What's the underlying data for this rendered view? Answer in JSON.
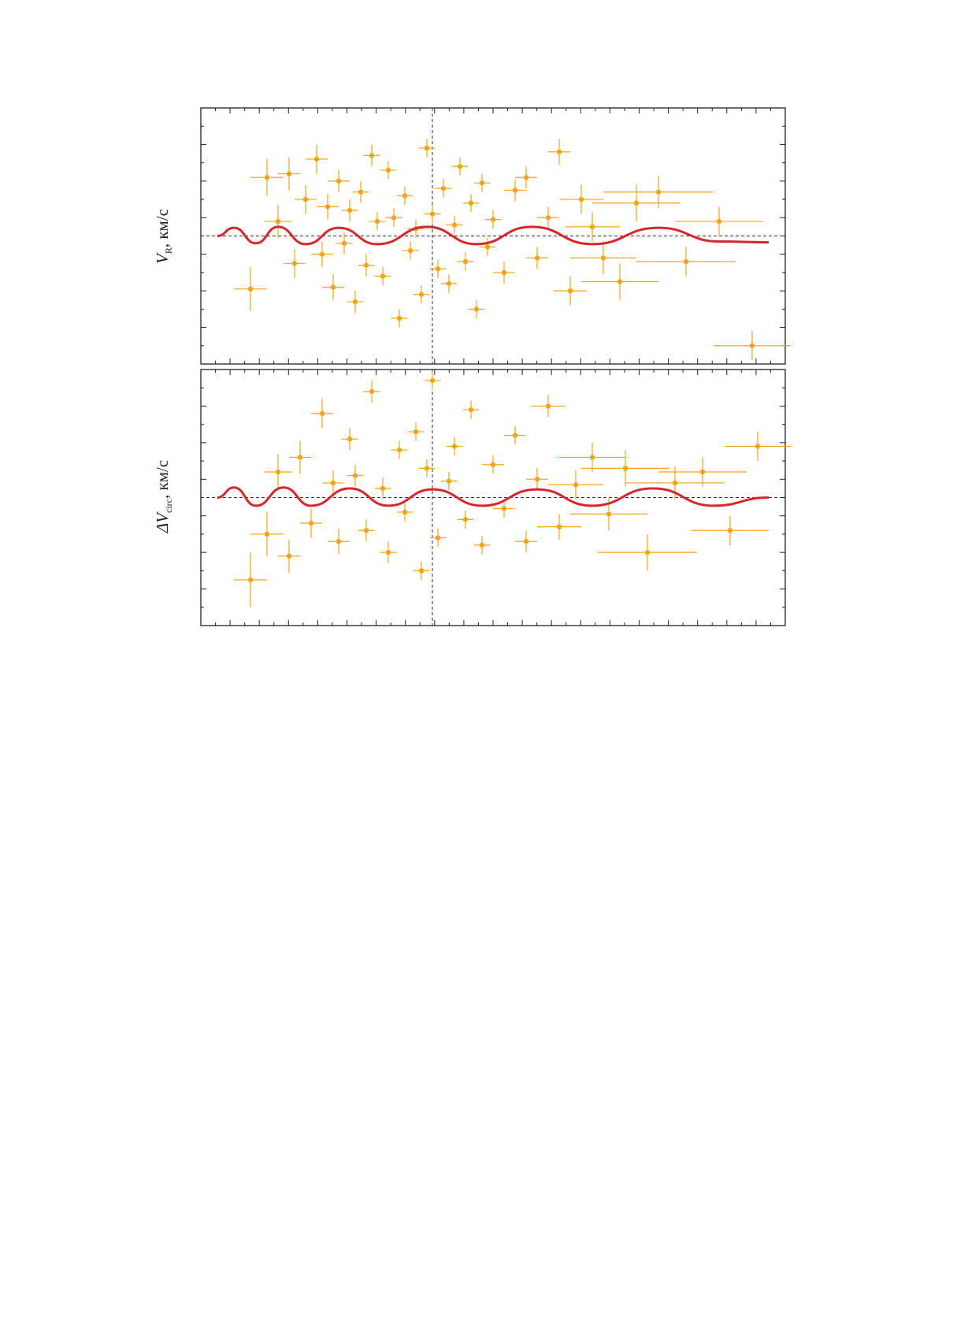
{
  "figure": {
    "colors": {
      "points": "#f5a414",
      "curve": "#d9262c",
      "refline": "#333333",
      "frame": "#222222"
    }
  },
  "chart_data": [
    {
      "type": "scatter",
      "ylabel": {
        "symbol": "V",
        "subscript": "R",
        "unit": ", км/с"
      },
      "curve": {
        "description_source": "red sinusoid-like fitted curve",
        "x": [
          0.0,
          0.03,
          0.07,
          0.11,
          0.16,
          0.22,
          0.29,
          0.38,
          0.47,
          0.57,
          0.68,
          0.8,
          0.91,
          1.0
        ],
        "y": [
          0.0,
          0.45,
          -0.4,
          0.5,
          -0.45,
          0.45,
          -0.45,
          0.5,
          -0.45,
          0.5,
          -0.45,
          0.45,
          -0.3,
          -0.35
        ]
      },
      "points": {
        "description_source": "orange points with horizontal and vertical error bars",
        "x": [
          0.06,
          0.09,
          0.11,
          0.13,
          0.14,
          0.16,
          0.18,
          0.19,
          0.2,
          0.21,
          0.22,
          0.23,
          0.24,
          0.25,
          0.26,
          0.27,
          0.28,
          0.29,
          0.3,
          0.31,
          0.32,
          0.33,
          0.34,
          0.35,
          0.36,
          0.37,
          0.38,
          0.39,
          0.4,
          0.41,
          0.42,
          0.43,
          0.44,
          0.45,
          0.46,
          0.47,
          0.48,
          0.49,
          0.5,
          0.52,
          0.54,
          0.56,
          0.58,
          0.6,
          0.62,
          0.64,
          0.66,
          0.68,
          0.7,
          0.73,
          0.76,
          0.8,
          0.85,
          0.91,
          0.97
        ],
        "y": [
          -2.9,
          3.2,
          0.8,
          3.4,
          -1.5,
          2.0,
          4.2,
          -1.0,
          1.6,
          -2.8,
          3.0,
          -0.4,
          1.4,
          -3.6,
          2.4,
          -1.6,
          4.4,
          0.8,
          -2.2,
          3.6,
          1.0,
          -4.5,
          2.2,
          -0.8,
          0.4,
          -3.2,
          4.8,
          1.2,
          -1.8,
          2.6,
          -2.6,
          0.6,
          3.8,
          -1.4,
          1.8,
          -4.0,
          2.9,
          -0.6,
          0.9,
          -2.0,
          2.5,
          3.2,
          -1.2,
          1.0,
          4.6,
          -3.0,
          2.0,
          0.5,
          -1.2,
          -2.5,
          1.8,
          2.4,
          -1.4,
          0.8,
          -6.0
        ],
        "xerr": [
          0.03,
          0.03,
          0.025,
          0.02,
          0.02,
          0.02,
          0.02,
          0.02,
          0.02,
          0.02,
          0.02,
          0.015,
          0.015,
          0.015,
          0.015,
          0.015,
          0.015,
          0.015,
          0.015,
          0.015,
          0.015,
          0.015,
          0.015,
          0.015,
          0.015,
          0.015,
          0.015,
          0.015,
          0.015,
          0.015,
          0.015,
          0.015,
          0.015,
          0.015,
          0.015,
          0.015,
          0.015,
          0.015,
          0.015,
          0.02,
          0.02,
          0.02,
          0.02,
          0.02,
          0.02,
          0.03,
          0.04,
          0.05,
          0.06,
          0.07,
          0.08,
          0.1,
          0.09,
          0.08,
          0.07
        ],
        "yerr": [
          1.2,
          1.0,
          0.9,
          0.9,
          0.8,
          0.8,
          0.8,
          0.7,
          0.7,
          0.7,
          0.6,
          0.6,
          0.6,
          0.6,
          0.6,
          0.6,
          0.6,
          0.5,
          0.5,
          0.5,
          0.5,
          0.5,
          0.5,
          0.5,
          0.5,
          0.5,
          0.5,
          0.5,
          0.5,
          0.5,
          0.5,
          0.5,
          0.5,
          0.5,
          0.5,
          0.5,
          0.5,
          0.5,
          0.5,
          0.6,
          0.6,
          0.6,
          0.6,
          0.6,
          0.7,
          0.8,
          0.8,
          0.8,
          0.9,
          1.0,
          1.0,
          0.9,
          0.8,
          0.8,
          0.8
        ]
      },
      "xlim": [
        -0.03,
        1.03
      ],
      "ylim": [
        -7,
        7
      ],
      "reference_lines": {
        "horizontal_y": 0,
        "vertical_x": 0.39
      }
    },
    {
      "type": "scatter",
      "ylabel": {
        "symbol": "ΔV",
        "subscript": "circ",
        "unit": ", км/с"
      },
      "curve": {
        "description_source": "red sinusoid-like fitted curve",
        "x": [
          0.0,
          0.03,
          0.07,
          0.12,
          0.17,
          0.24,
          0.31,
          0.39,
          0.48,
          0.58,
          0.68,
          0.79,
          0.9,
          1.0
        ],
        "y": [
          0.0,
          0.55,
          -0.45,
          0.55,
          -0.45,
          0.5,
          -0.45,
          0.45,
          -0.45,
          0.45,
          -0.45,
          0.5,
          -0.45,
          0.0
        ]
      },
      "points": {
        "description_source": "orange points with horizontal and vertical error bars",
        "x": [
          0.06,
          0.09,
          0.11,
          0.13,
          0.15,
          0.17,
          0.19,
          0.21,
          0.22,
          0.24,
          0.25,
          0.27,
          0.28,
          0.3,
          0.31,
          0.33,
          0.34,
          0.36,
          0.37,
          0.38,
          0.39,
          0.4,
          0.42,
          0.43,
          0.45,
          0.46,
          0.48,
          0.5,
          0.52,
          0.54,
          0.56,
          0.58,
          0.6,
          0.62,
          0.65,
          0.68,
          0.71,
          0.74,
          0.78,
          0.83,
          0.88,
          0.93,
          0.98
        ],
        "y": [
          -4.5,
          -2.0,
          1.4,
          -3.2,
          2.2,
          -1.4,
          4.6,
          0.8,
          -2.4,
          3.2,
          1.2,
          -1.8,
          5.8,
          0.5,
          -3.0,
          2.6,
          -0.8,
          3.6,
          -4.0,
          1.6,
          6.4,
          -2.2,
          0.9,
          2.8,
          -1.2,
          4.8,
          -2.6,
          1.8,
          -0.6,
          3.4,
          -2.4,
          1.0,
          5.0,
          -1.6,
          0.7,
          2.2,
          -0.9,
          1.6,
          -3.0,
          0.8,
          1.4,
          -1.8,
          2.8
        ],
        "xerr": [
          0.03,
          0.03,
          0.025,
          0.02,
          0.02,
          0.02,
          0.02,
          0.02,
          0.02,
          0.015,
          0.015,
          0.015,
          0.015,
          0.015,
          0.015,
          0.015,
          0.015,
          0.015,
          0.015,
          0.015,
          0.015,
          0.015,
          0.015,
          0.015,
          0.015,
          0.015,
          0.015,
          0.02,
          0.02,
          0.02,
          0.02,
          0.02,
          0.03,
          0.04,
          0.05,
          0.06,
          0.07,
          0.08,
          0.09,
          0.09,
          0.08,
          0.07,
          0.06
        ],
        "yerr": [
          1.5,
          1.2,
          1.0,
          0.9,
          0.9,
          0.8,
          0.8,
          0.7,
          0.7,
          0.6,
          0.6,
          0.6,
          0.6,
          0.6,
          0.6,
          0.5,
          0.5,
          0.5,
          0.5,
          0.5,
          0.5,
          0.5,
          0.5,
          0.5,
          0.5,
          0.5,
          0.5,
          0.5,
          0.5,
          0.5,
          0.6,
          0.6,
          0.6,
          0.7,
          0.8,
          0.8,
          0.9,
          1.0,
          1.0,
          0.9,
          0.8,
          0.8,
          0.8
        ]
      },
      "xlim": [
        -0.03,
        1.03
      ],
      "ylim": [
        -7,
        7
      ],
      "reference_lines": {
        "horizontal_y": 0,
        "vertical_x": 0.39
      }
    }
  ]
}
